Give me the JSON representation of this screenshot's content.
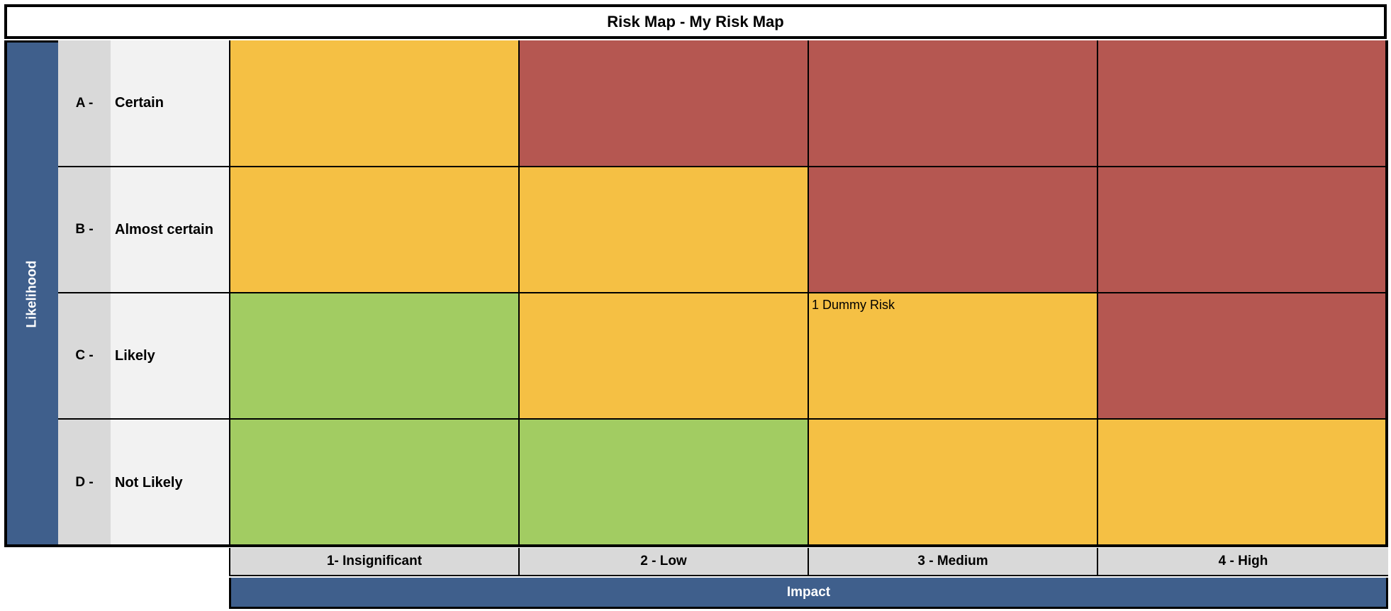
{
  "title": "Risk Map - My Risk Map",
  "likelihood_axis_label": "Likelihood",
  "impact_axis_label": "Impact",
  "colors": {
    "axis": "#3f5f8c",
    "low": "#a2cc62",
    "medium": "#f5c044",
    "high": "#b55751"
  },
  "likelihood_levels": [
    {
      "code": "A -",
      "label": "Certain"
    },
    {
      "code": "B -",
      "label": "Almost certain"
    },
    {
      "code": "C -",
      "label": "Likely"
    },
    {
      "code": "D -",
      "label": "Not Likely"
    }
  ],
  "impact_levels": [
    "1- Insignificant",
    "2 - Low",
    "3 - Medium",
    "4 - High"
  ],
  "matrix": [
    [
      {
        "level": "medium",
        "text": ""
      },
      {
        "level": "high",
        "text": ""
      },
      {
        "level": "high",
        "text": ""
      },
      {
        "level": "high",
        "text": ""
      }
    ],
    [
      {
        "level": "medium",
        "text": ""
      },
      {
        "level": "medium",
        "text": ""
      },
      {
        "level": "high",
        "text": ""
      },
      {
        "level": "high",
        "text": ""
      }
    ],
    [
      {
        "level": "low",
        "text": ""
      },
      {
        "level": "medium",
        "text": ""
      },
      {
        "level": "medium",
        "text": "1 Dummy Risk"
      },
      {
        "level": "high",
        "text": ""
      }
    ],
    [
      {
        "level": "low",
        "text": ""
      },
      {
        "level": "low",
        "text": ""
      },
      {
        "level": "medium",
        "text": ""
      },
      {
        "level": "medium",
        "text": ""
      }
    ]
  ]
}
